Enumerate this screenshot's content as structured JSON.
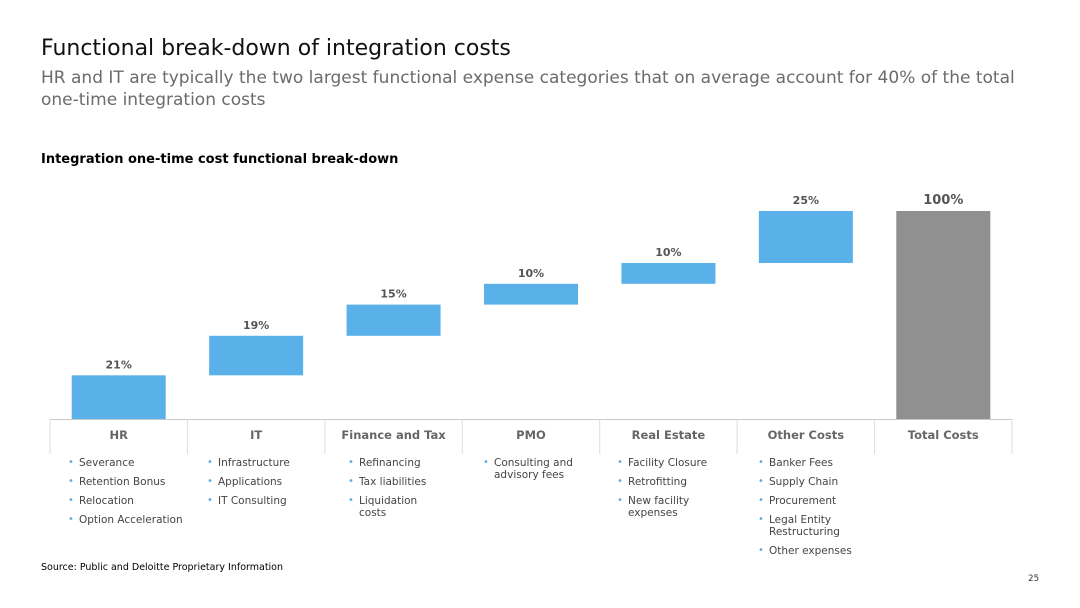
{
  "header": {
    "title": "Functional break-down of integration costs",
    "subtitle": "HR and IT are typically the two largest functional expense categories that on average account for 40% of the total one-time integration costs"
  },
  "chart_heading": "Integration one-time cost functional break-down",
  "chart_data": {
    "type": "bar",
    "subtype": "waterfall",
    "categories": [
      "HR",
      "IT",
      "Finance and Tax",
      "PMO",
      "Real Estate",
      "Other Costs",
      "Total Costs"
    ],
    "values": [
      21,
      19,
      15,
      10,
      10,
      25,
      100
    ],
    "labels": [
      "21%",
      "19%",
      "15%",
      "10%",
      "10%",
      "25%",
      "100%"
    ],
    "ylim": [
      0,
      100
    ],
    "grid": false,
    "colors": {
      "increment": "#5ab0e8",
      "total": "#909090"
    }
  },
  "details": [
    [
      "Severance",
      "Retention Bonus",
      "Relocation",
      "Option Acceleration"
    ],
    [
      "Infrastructure",
      "Applications",
      "IT Consulting"
    ],
    [
      "Refinancing",
      "Tax liabilities",
      "Liquidation costs"
    ],
    [
      "Consulting and advisory fees"
    ],
    [
      "Facility Closure",
      "Retrofitting",
      "New facility expenses"
    ],
    [
      "Banker Fees",
      "Supply Chain",
      "Procurement",
      "Legal Entity Restructuring",
      "Other expenses"
    ]
  ],
  "footer": {
    "source": "Source: Public and Deloitte Proprietary Information",
    "page_number": "25"
  }
}
